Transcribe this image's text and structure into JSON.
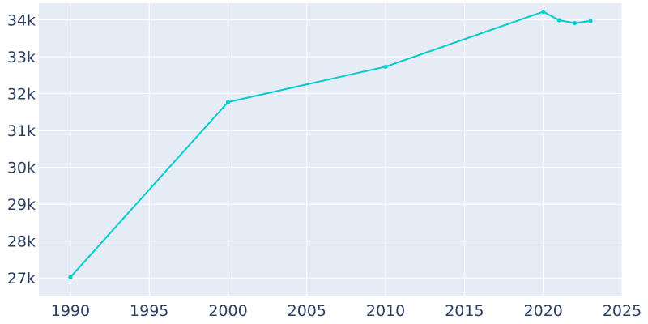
{
  "chart_data": {
    "type": "line",
    "title": "",
    "xlabel": "",
    "ylabel": "",
    "xlim": [
      1988,
      2025
    ],
    "ylim": [
      26500,
      34450
    ],
    "x_ticks": [
      1990,
      1995,
      2000,
      2005,
      2010,
      2015,
      2020,
      2025
    ],
    "x_tick_labels": [
      "1990",
      "1995",
      "2000",
      "2005",
      "2010",
      "2015",
      "2020",
      "2025"
    ],
    "y_ticks": [
      27000,
      28000,
      29000,
      30000,
      31000,
      32000,
      33000,
      34000
    ],
    "y_tick_labels": [
      "27k",
      "28k",
      "29k",
      "30k",
      "31k",
      "32k",
      "33k",
      "34k"
    ],
    "grid": true,
    "legend": "none",
    "series": [
      {
        "color": "#00cccc",
        "x": [
          1990,
          2000,
          2010,
          2020,
          2021,
          2022,
          2023
        ],
        "y": [
          27020,
          31770,
          32730,
          34220,
          33990,
          33910,
          33970
        ]
      }
    ]
  },
  "colors": {
    "plot_background": "#e5ecf6",
    "grid": "#ffffff",
    "tick_text": "#2a3f5f"
  }
}
